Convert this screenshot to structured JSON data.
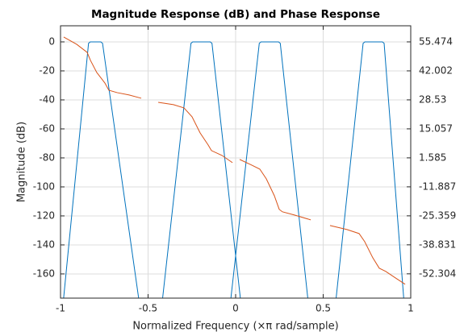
{
  "chart_data": {
    "type": "line",
    "title": "Magnitude Response (dB) and Phase Response",
    "x_label": "Normalized Frequency (×π rad/sample)",
    "y_label": "Magnitude (dB)",
    "xlim": [
      -1,
      1
    ],
    "xticks": [
      -1,
      -0.5,
      0,
      0.5,
      1
    ],
    "ylim": [
      -176.7,
      11.1
    ],
    "yticks": [
      0,
      -20,
      -40,
      -60,
      -80,
      -100,
      -120,
      -140,
      -160
    ],
    "y2lim": [
      -63.6,
      62.95
    ],
    "y2ticks": [
      55.474,
      42.002,
      28.53,
      15.057,
      1.585,
      -11.887,
      -25.359,
      -38.831,
      -52.304
    ],
    "grid": true,
    "series": [
      {
        "color": "#0072bd",
        "axis": "y",
        "x": [
          -0.985,
          -0.84,
          -0.83,
          -0.77,
          -0.76,
          -0.55,
          null,
          -0.42,
          -0.255,
          -0.245,
          -0.145,
          -0.135,
          0.03,
          null,
          -0.03,
          0.135,
          0.145,
          0.245,
          0.255,
          0.415,
          null,
          0.571,
          0.728,
          0.738,
          0.838,
          0.848,
          0.962
        ],
        "values": [
          -180,
          -1,
          0,
          0,
          -1,
          -180,
          null,
          -180,
          -1,
          0,
          0,
          -1,
          -180,
          null,
          -180,
          -1,
          0,
          0,
          -1,
          -180,
          null,
          -180,
          -1,
          0,
          0,
          -1,
          -180
        ]
      },
      {
        "color": "#d95319",
        "axis": "y2",
        "x": [
          -0.982,
          -0.908,
          -0.848,
          -0.829,
          -0.793,
          -0.747,
          -0.724,
          -0.677,
          -0.608,
          -0.539,
          null,
          -0.442,
          -0.355,
          -0.295,
          -0.249,
          -0.203,
          -0.157,
          -0.138,
          -0.078,
          -0.018,
          null,
          0.023,
          0.092,
          0.138,
          0.175,
          0.221,
          0.249,
          0.267,
          0.336,
          0.429,
          null,
          0.539,
          0.636,
          0.705,
          0.737,
          0.783,
          0.82,
          0.857,
          0.912,
          0.968
        ],
        "values": [
          57.72,
          54.35,
          50.61,
          46.87,
          41.25,
          36.39,
          33.02,
          31.9,
          30.78,
          29.28,
          null,
          27.4,
          26.29,
          24.79,
          20.67,
          13.19,
          7.57,
          4.95,
          2.71,
          -0.66,
          null,
          0.84,
          -1.78,
          -3.65,
          -8.14,
          -16.0,
          -22.36,
          -23.48,
          -24.98,
          -27.23,
          null,
          -29.85,
          -31.72,
          -33.59,
          -37.33,
          -44.81,
          -49.68,
          -51.18,
          -54.17,
          -57.17
        ]
      }
    ]
  }
}
